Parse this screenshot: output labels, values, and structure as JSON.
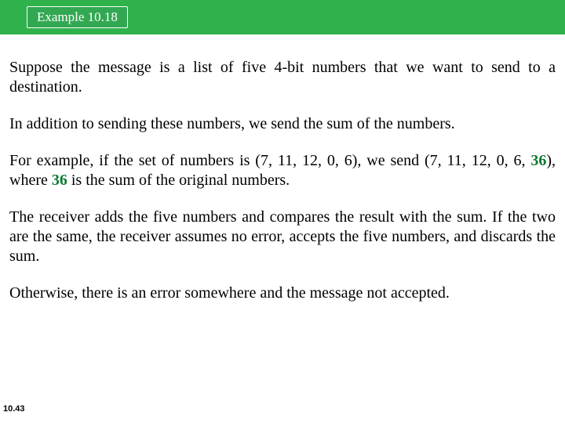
{
  "header": {
    "badge_label": "Example 10.18",
    "bar_color": "#2fb24b",
    "badge_bg": "#32a852",
    "badge_border": "#ffffff",
    "badge_text_color": "#ffffff"
  },
  "body": {
    "text_color": "#000000",
    "font_family": "Times New Roman",
    "font_size_pt": 15,
    "highlight_color": "#0e7a33",
    "p1": "Suppose the message is a list of five 4-bit numbers that we want to send to a destination.",
    "p2": "In addition to sending these numbers, we send the sum of the numbers.",
    "p3_a": " For example, if the set of numbers is (7, 11, 12, 0, 6), we send (7, 11, 12, 0, 6, ",
    "p3_bold1": "36",
    "p3_b": "), where ",
    "p3_bold2": "36",
    "p3_c": " is the sum of the original numbers.",
    "p4": " The receiver adds the five numbers and compares the result with the sum. If the two are the same, the receiver assumes no error, accepts the five numbers, and discards the sum.",
    "p5": "Otherwise, there is an error somewhere and the message not accepted."
  },
  "footer": {
    "page_number": "10.43"
  }
}
